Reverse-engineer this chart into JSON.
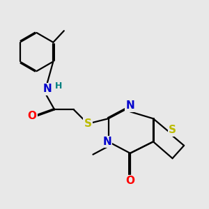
{
  "background_color": "#e8e8e8",
  "bond_color": "#000000",
  "bond_width": 1.6,
  "atom_colors": {
    "C": "#000000",
    "N": "#0000cc",
    "O": "#ff0000",
    "S": "#bbbb00",
    "H": "#008080"
  },
  "font_size_atom": 11,
  "font_size_h": 9,
  "font_size_methyl": 8.5
}
